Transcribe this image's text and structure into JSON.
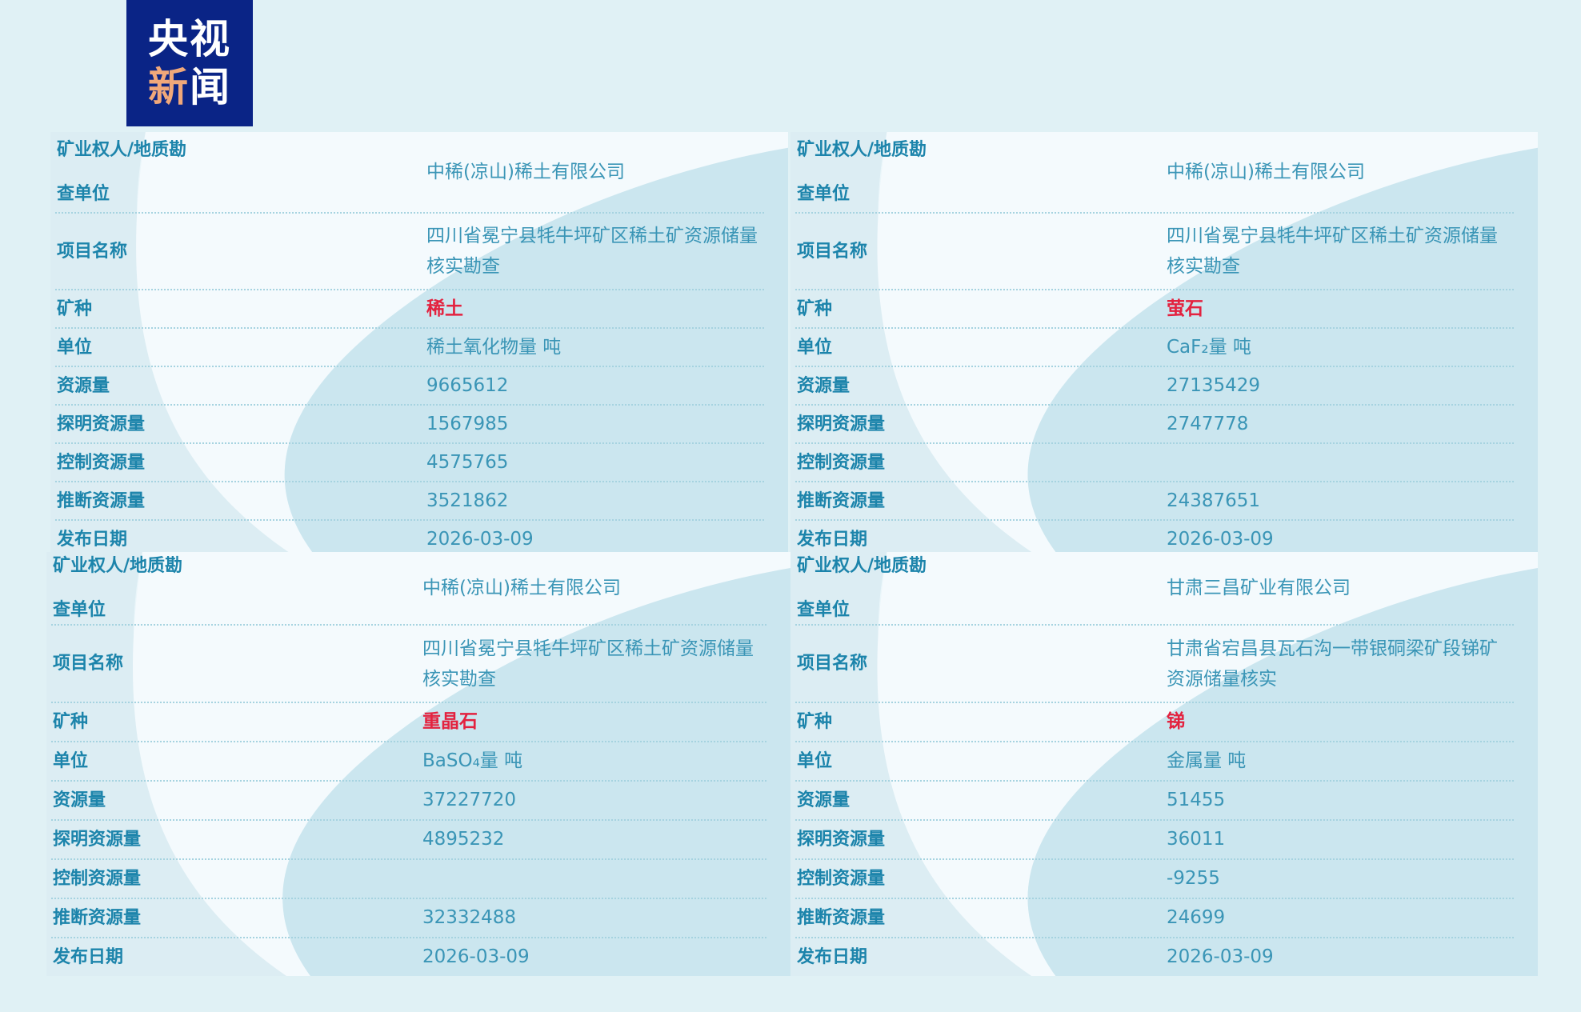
{
  "logo": {
    "line1": "央视",
    "line2a": "新",
    "line2b": "闻"
  },
  "labels": [
    "矿业权人/地质勘查单位",
    "项目名称",
    "矿种",
    "单位",
    "资源量",
    "探明资源量",
    "控制资源量",
    "推断资源量",
    "发布日期"
  ],
  "label_first_line1": "矿业权人/地质勘",
  "label_first_line2": "查单位",
  "colors": {
    "label": "#1c84ab",
    "value": "#3a95b6",
    "mineral": "#e3223f",
    "logo_bg": "#0a2486"
  },
  "panels": [
    {
      "company": "中稀(凉山)稀土有限公司",
      "project": "四川省冕宁县牦牛坪矿区稀土矿资源储量核实勘查",
      "mineral": "稀土",
      "unit": "稀土氧化物量 吨",
      "resource": "9665612",
      "proven": "1567985",
      "controlled": "4575765",
      "inferred": "3521862",
      "date": "2026-03-09"
    },
    {
      "company": "中稀(凉山)稀土有限公司",
      "project": "四川省冕宁县牦牛坪矿区稀土矿资源储量核实勘查",
      "mineral": "萤石",
      "unit": "CaF₂量 吨",
      "resource": "27135429",
      "proven": "2747778",
      "controlled": "",
      "inferred": "24387651",
      "date": "2026-03-09"
    },
    {
      "company": "中稀(凉山)稀土有限公司",
      "project": "四川省冕宁县牦牛坪矿区稀土矿资源储量核实勘查",
      "mineral": "重晶石",
      "unit": "BaSO₄量 吨",
      "resource": "37227720",
      "proven": "4895232",
      "controlled": "",
      "inferred": "32332488",
      "date": "2026-03-09"
    },
    {
      "company": "甘肃三昌矿业有限公司",
      "project": "甘肃省宕昌县瓦石沟一带银硐梁矿段锑矿资源储量核实",
      "mineral": "锑",
      "unit": "金属量 吨",
      "resource": "51455",
      "proven": "36011",
      "controlled": "-9255",
      "inferred": "24699",
      "date": "2026-03-09"
    }
  ]
}
